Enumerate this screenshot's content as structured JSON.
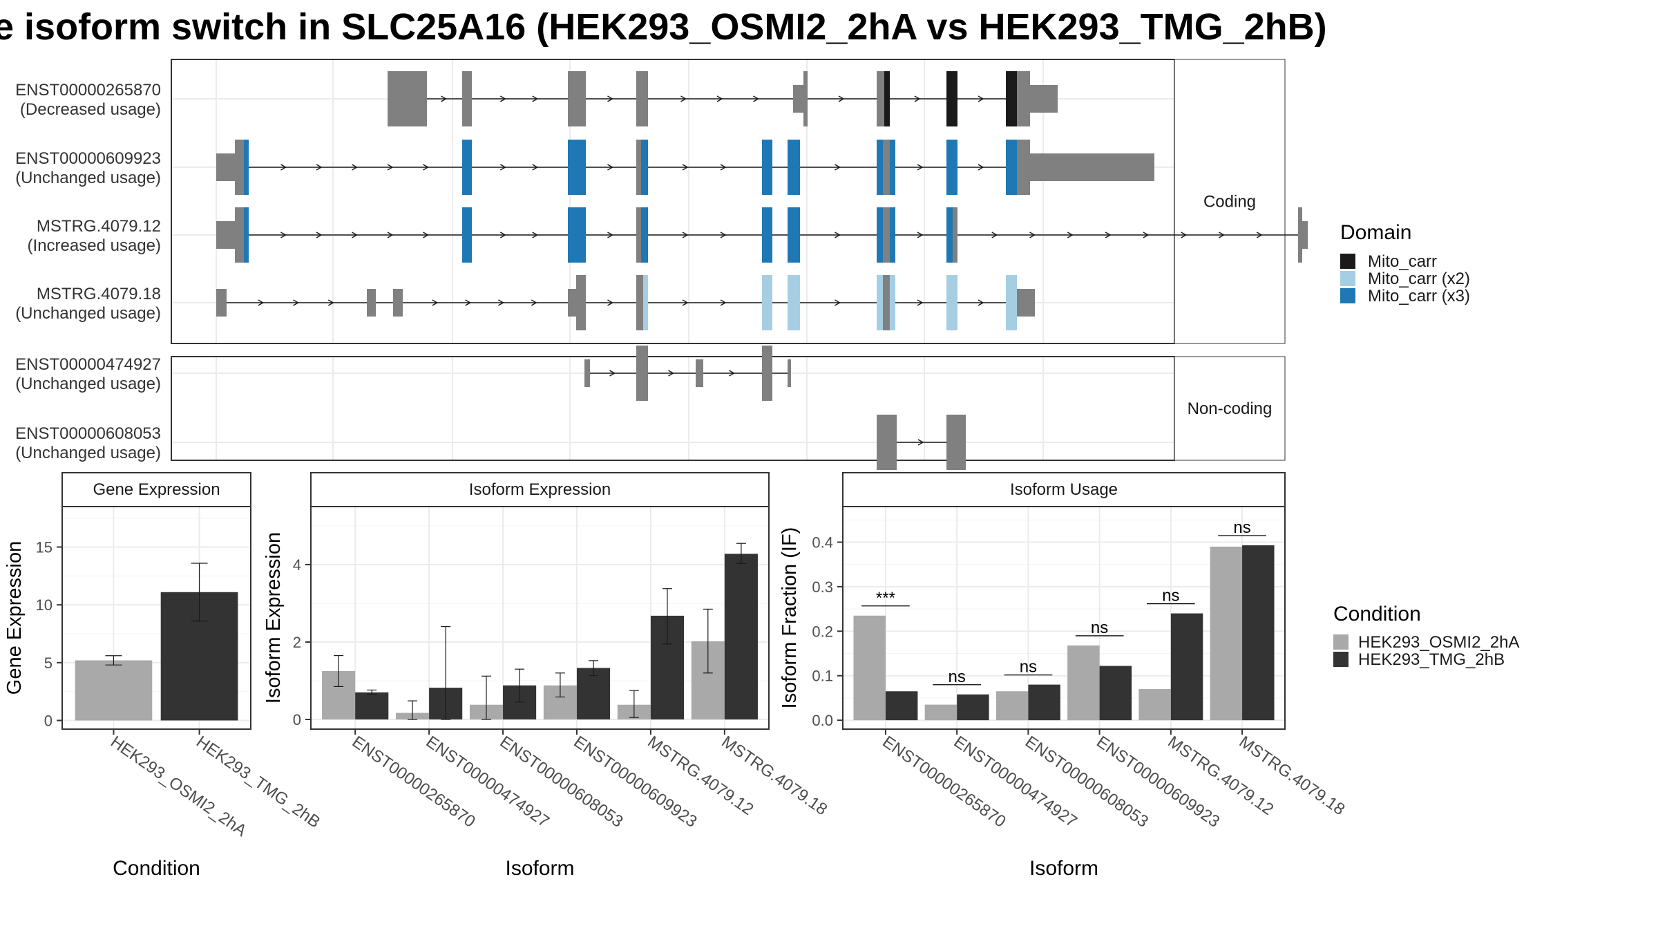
{
  "title": "e isoform switch in SLC25A16 (HEK293_OSMI2_2hA vs HEK293_TMG_2hB)",
  "colors": {
    "exon_plain": "#808080",
    "mito_carr": "#1a1a1a",
    "mito_carr_x2": "#a6cee3",
    "mito_carr_x3": "#1f78b4",
    "cond_a": "#a9a9a9",
    "cond_b": "#333333"
  },
  "chart_data": [
    {
      "type": "gene-structure",
      "panels": [
        {
          "strip": "Coding",
          "transcripts": [
            {
              "id": "ENST00000265870",
              "usage": "(Decreased usage)",
              "exons": [
                [
                  248,
                  305,
                  "thick"
                ],
                [
                  356,
                  370,
                  "thick"
                ],
                [
                  509,
                  535,
                  "thick"
                ],
                [
                  608,
                  625,
                  "thick"
                ],
                [
                  835,
                  850,
                  "thin"
                ],
                [
                  850,
                  856,
                  "thick"
                ],
                [
                  956,
                  965,
                  "thick"
                ],
                [
                  965,
                  967,
                  "thick"
                ],
                [
                  967,
                  975,
                  "mito"
                ],
                [
                  1057,
                  1073,
                  "mito"
                ],
                [
                  1143,
                  1159,
                  "mito"
                ],
                [
                  1159,
                  1178,
                  "thick"
                ],
                [
                  1178,
                  1218,
                  "thin"
                ]
              ],
              "line": [
                248,
                1218
              ]
            },
            {
              "id": "ENST00000609923",
              "usage": "(Unchanged usage)",
              "exons": [
                [
                  0,
                  27,
                  "thin"
                ],
                [
                  27,
                  40,
                  "thick"
                ],
                [
                  40,
                  47,
                  "x3"
                ],
                [
                  356,
                  370,
                  "x3"
                ],
                [
                  509,
                  535,
                  "x3"
                ],
                [
                  608,
                  615,
                  "thick"
                ],
                [
                  615,
                  625,
                  "x3"
                ],
                [
                  790,
                  805,
                  "x3"
                ],
                [
                  827,
                  845,
                  "x3"
                ],
                [
                  956,
                  965,
                  "x3"
                ],
                [
                  965,
                  975,
                  "thick"
                ],
                [
                  975,
                  983,
                  "x3"
                ],
                [
                  1057,
                  1073,
                  "x3"
                ],
                [
                  1143,
                  1159,
                  "x3"
                ],
                [
                  1159,
                  1178,
                  "thick"
                ],
                [
                  1178,
                  1358,
                  "thin"
                ]
              ],
              "line": [
                0,
                1358
              ]
            },
            {
              "id": "MSTRG.4079.12",
              "usage": "(Increased usage)",
              "exons": [
                [
                  0,
                  27,
                  "thin"
                ],
                [
                  27,
                  40,
                  "thick"
                ],
                [
                  40,
                  47,
                  "x3"
                ],
                [
                  356,
                  370,
                  "x3"
                ],
                [
                  509,
                  535,
                  "x3"
                ],
                [
                  608,
                  615,
                  "thick"
                ],
                [
                  615,
                  625,
                  "x3"
                ],
                [
                  790,
                  805,
                  "x3"
                ],
                [
                  827,
                  845,
                  "x3"
                ],
                [
                  956,
                  965,
                  "x3"
                ],
                [
                  965,
                  975,
                  "thick"
                ],
                [
                  975,
                  983,
                  "x3"
                ],
                [
                  1057,
                  1066,
                  "x3"
                ],
                [
                  1066,
                  1073,
                  "thick"
                ],
                [
                  1566,
                  1572,
                  "thick"
                ],
                [
                  1572,
                  1580,
                  "thin"
                ]
              ],
              "line": [
                0,
                1580
              ]
            },
            {
              "id": "MSTRG.4079.18",
              "usage": "(Unchanged usage)",
              "exons": [
                [
                  0,
                  15,
                  "thin"
                ],
                [
                  218,
                  231,
                  "thin"
                ],
                [
                  256,
                  270,
                  "thin"
                ],
                [
                  509,
                  521,
                  "thin"
                ],
                [
                  521,
                  535,
                  "thick"
                ],
                [
                  608,
                  618,
                  "thick"
                ],
                [
                  618,
                  625,
                  "x2"
                ],
                [
                  790,
                  805,
                  "x2"
                ],
                [
                  827,
                  845,
                  "x2"
                ],
                [
                  956,
                  965,
                  "x2"
                ],
                [
                  965,
                  975,
                  "thick"
                ],
                [
                  975,
                  983,
                  "x2"
                ],
                [
                  1057,
                  1073,
                  "x2"
                ],
                [
                  1143,
                  1159,
                  "x2"
                ],
                [
                  1159,
                  1185,
                  "thin"
                ]
              ],
              "line": [
                0,
                1185
              ]
            }
          ]
        },
        {
          "strip": "Non-coding",
          "transcripts": [
            {
              "id": "ENST00000474927",
              "usage": "(Unchanged usage)",
              "exons": [
                [
                  533,
                  541,
                  "thin"
                ],
                [
                  608,
                  625,
                  "thick"
                ],
                [
                  694,
                  705,
                  "thin"
                ],
                [
                  790,
                  805,
                  "thick"
                ],
                [
                  827,
                  832,
                  "thin"
                ]
              ],
              "line": [
                533,
                832
              ]
            },
            {
              "id": "ENST00000608053",
              "usage": "(Unchanged usage)",
              "exons": [
                [
                  956,
                  985,
                  "thick"
                ],
                [
                  1057,
                  1085,
                  "thick"
                ]
              ],
              "line": [
                956,
                1085
              ]
            }
          ]
        }
      ],
      "legend": {
        "title": "Domain",
        "entries": [
          {
            "label": "Mito_carr",
            "key": "mito"
          },
          {
            "label": "Mito_carr (x2)",
            "key": "x2"
          },
          {
            "label": "Mito_carr (x3)",
            "key": "x3"
          }
        ]
      }
    },
    {
      "type": "bar",
      "strip": "Gene Expression",
      "ylabel": "Gene Expression",
      "xlabel": "Condition",
      "ylim": [
        -0.75,
        18.5
      ],
      "yticks": [
        0,
        5,
        10,
        15
      ],
      "categories": [
        "HEK293_OSMI2_2hA",
        "HEK293_TMG_2hB"
      ],
      "values": [
        5.2,
        11.1
      ],
      "error_low": [
        4.8,
        8.6
      ],
      "error_high": [
        5.6,
        13.6
      ]
    },
    {
      "type": "bar",
      "strip": "Isoform Expression",
      "ylabel": "Isoform Expression",
      "xlabel": "Isoform",
      "ylim": [
        -0.25,
        5.5
      ],
      "yticks": [
        0,
        2,
        4
      ],
      "categories": [
        "ENST00000265870",
        "ENST00000474927",
        "ENST00000608053",
        "ENST00000609923",
        "MSTRG.4079.12",
        "MSTRG.4079.18"
      ],
      "series": [
        {
          "name": "HEK293_OSMI2_2hA",
          "values": [
            1.25,
            0.17,
            0.38,
            0.88,
            0.38,
            2.02
          ],
          "error_low": [
            0.85,
            0,
            0,
            0.58,
            0.05,
            1.2
          ],
          "error_high": [
            1.65,
            0.48,
            1.12,
            1.2,
            0.75,
            2.85
          ]
        },
        {
          "name": "HEK293_TMG_2hB",
          "values": [
            0.7,
            0.82,
            0.88,
            1.33,
            2.68,
            4.28
          ],
          "error_low": [
            0.65,
            0,
            0.45,
            1.13,
            1.95,
            4.03
          ],
          "error_high": [
            0.76,
            2.4,
            1.3,
            1.52,
            3.38,
            4.55
          ]
        }
      ]
    },
    {
      "type": "bar",
      "strip": "Isoform Usage",
      "ylabel": "Isoform Fraction (IF)",
      "xlabel": "Isoform",
      "ylim": [
        -0.02,
        0.48
      ],
      "yticks": [
        0.0,
        0.1,
        0.2,
        0.3,
        0.4
      ],
      "ytick_labels": [
        "0.0",
        "0.1",
        "0.2",
        "0.3",
        "0.4"
      ],
      "categories": [
        "ENST00000265870",
        "ENST00000474927",
        "ENST00000608053",
        "ENST00000609923",
        "MSTRG.4079.12",
        "MSTRG.4079.18"
      ],
      "series": [
        {
          "name": "HEK293_OSMI2_2hA",
          "values": [
            0.235,
            0.035,
            0.065,
            0.168,
            0.07,
            0.39
          ]
        },
        {
          "name": "HEK293_TMG_2hB",
          "values": [
            0.065,
            0.058,
            0.08,
            0.122,
            0.24,
            0.393
          ]
        }
      ],
      "significance": [
        "***",
        "ns",
        "ns",
        "ns",
        "ns",
        "ns"
      ]
    }
  ],
  "condition_legend": {
    "title": "Condition",
    "entries": [
      "HEK293_OSMI2_2hA",
      "HEK293_TMG_2hB"
    ]
  }
}
